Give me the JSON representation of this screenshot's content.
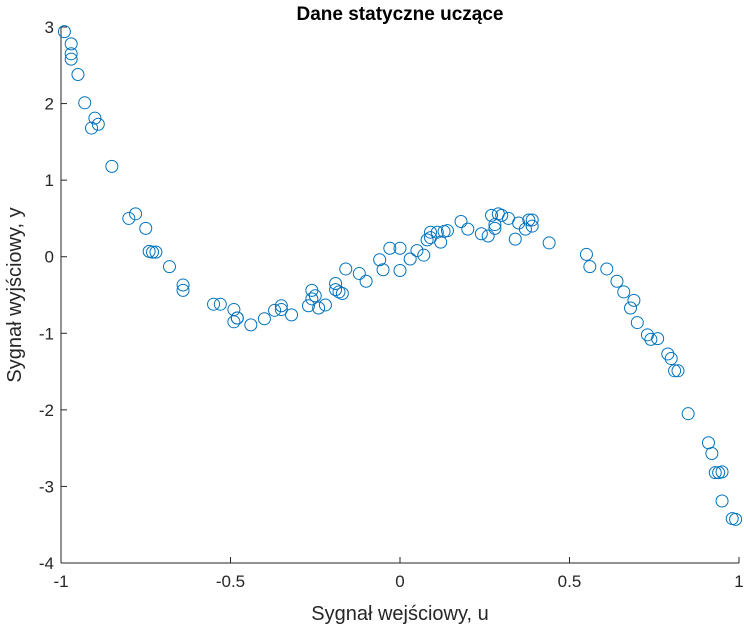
{
  "chart_data": {
    "type": "scatter",
    "title": "Dane statyczne uczące",
    "xlabel": "Sygnał wejściowy, u",
    "ylabel": "Sygnał wyjściowy, y",
    "xlim": [
      -1,
      1
    ],
    "ylim": [
      -4,
      3
    ],
    "xticks": [
      -1,
      -0.5,
      0,
      0.5,
      1
    ],
    "yticks": [
      -4,
      -3,
      -2,
      -1,
      0,
      1,
      2,
      3
    ],
    "xtick_labels": [
      "-1",
      "-0.5",
      "0",
      "0.5",
      "1"
    ],
    "ytick_labels": [
      "-4",
      "-3",
      "-2",
      "-1",
      "0",
      "1",
      "2",
      "3"
    ],
    "grid": false,
    "marker": "circle-open",
    "color": "#0072BD",
    "x": [
      -0.99,
      -0.97,
      -0.97,
      -0.97,
      -0.95,
      -0.93,
      -0.91,
      -0.9,
      -0.89,
      -0.85,
      -0.8,
      -0.78,
      -0.75,
      -0.74,
      -0.73,
      -0.72,
      -0.68,
      -0.64,
      -0.64,
      -0.55,
      -0.53,
      -0.49,
      -0.49,
      -0.48,
      -0.48,
      -0.44,
      -0.4,
      -0.37,
      -0.35,
      -0.35,
      -0.32,
      -0.27,
      -0.26,
      -0.26,
      -0.25,
      -0.24,
      -0.22,
      -0.19,
      -0.19,
      -0.18,
      -0.17,
      -0.16,
      -0.12,
      -0.1,
      -0.06,
      -0.05,
      -0.03,
      0.0,
      0.0,
      0.03,
      0.05,
      0.07,
      0.08,
      0.09,
      0.09,
      0.11,
      0.12,
      0.13,
      0.14,
      0.18,
      0.2,
      0.24,
      0.26,
      0.27,
      0.28,
      0.28,
      0.29,
      0.3,
      0.32,
      0.34,
      0.35,
      0.37,
      0.38,
      0.39,
      0.39,
      0.44,
      0.55,
      0.56,
      0.61,
      0.64,
      0.66,
      0.68,
      0.69,
      0.7,
      0.73,
      0.74,
      0.76,
      0.79,
      0.8,
      0.81,
      0.82,
      0.85,
      0.91,
      0.92,
      0.93,
      0.94,
      0.95,
      0.95,
      0.98,
      0.99
    ],
    "y": [
      2.94,
      2.78,
      2.65,
      2.58,
      2.38,
      2.01,
      1.68,
      1.81,
      1.73,
      1.18,
      0.5,
      0.56,
      0.37,
      0.07,
      0.06,
      0.06,
      -0.13,
      -0.37,
      -0.44,
      -0.62,
      -0.62,
      -0.85,
      -0.69,
      -0.8,
      -0.8,
      -0.89,
      -0.81,
      -0.7,
      -0.64,
      -0.69,
      -0.76,
      -0.64,
      -0.44,
      -0.55,
      -0.51,
      -0.67,
      -0.63,
      -0.35,
      -0.43,
      -0.46,
      -0.48,
      -0.16,
      -0.22,
      -0.32,
      -0.04,
      -0.17,
      0.11,
      -0.18,
      0.11,
      -0.03,
      0.08,
      0.02,
      0.22,
      0.25,
      0.32,
      0.32,
      0.19,
      0.33,
      0.34,
      0.46,
      0.36,
      0.3,
      0.27,
      0.54,
      0.42,
      0.37,
      0.56,
      0.54,
      0.5,
      0.23,
      0.44,
      0.36,
      0.48,
      0.4,
      0.48,
      0.18,
      0.03,
      -0.13,
      -0.16,
      -0.32,
      -0.46,
      -0.67,
      -0.57,
      -0.86,
      -1.02,
      -1.08,
      -1.07,
      -1.27,
      -1.33,
      -1.49,
      -1.49,
      -2.05,
      -2.43,
      -2.57,
      -2.82,
      -2.82,
      -2.81,
      -3.19,
      -3.42,
      -3.43
    ]
  }
}
